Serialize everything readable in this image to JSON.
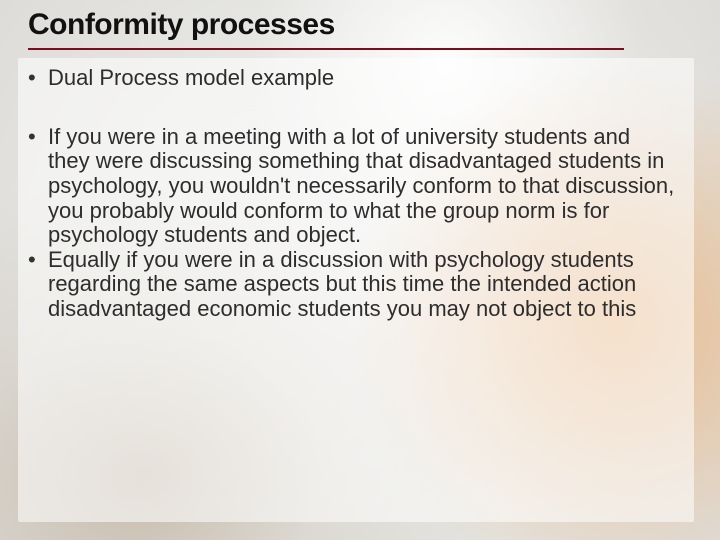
{
  "slide": {
    "title": "Conformity processes",
    "title_fontsize": 30,
    "title_font_family": "Arial Black, Arial, sans-serif",
    "title_color": "#111111",
    "rule_color": "#7a0d1e",
    "bullet_color": "#333333",
    "body_color": "#2d2d2d",
    "body_fontsize": 22,
    "line_height": 1.12,
    "panel_background": "rgba(255,255,255,0.55)",
    "background_base": "#e8e8e6",
    "bullets_group1": [
      "Dual Process model example"
    ],
    "bullets_group2": [
      "If you were in a meeting with a lot of university students and they were discussing something that disadvantaged students in psychology, you wouldn't necessarily conform to that discussion, you probably would conform to what the group norm is for psychology students and object.",
      "Equally if you were in a discussion with psychology students regarding the same aspects but this time the intended action disadvantaged economic students you may not object to this"
    ]
  }
}
